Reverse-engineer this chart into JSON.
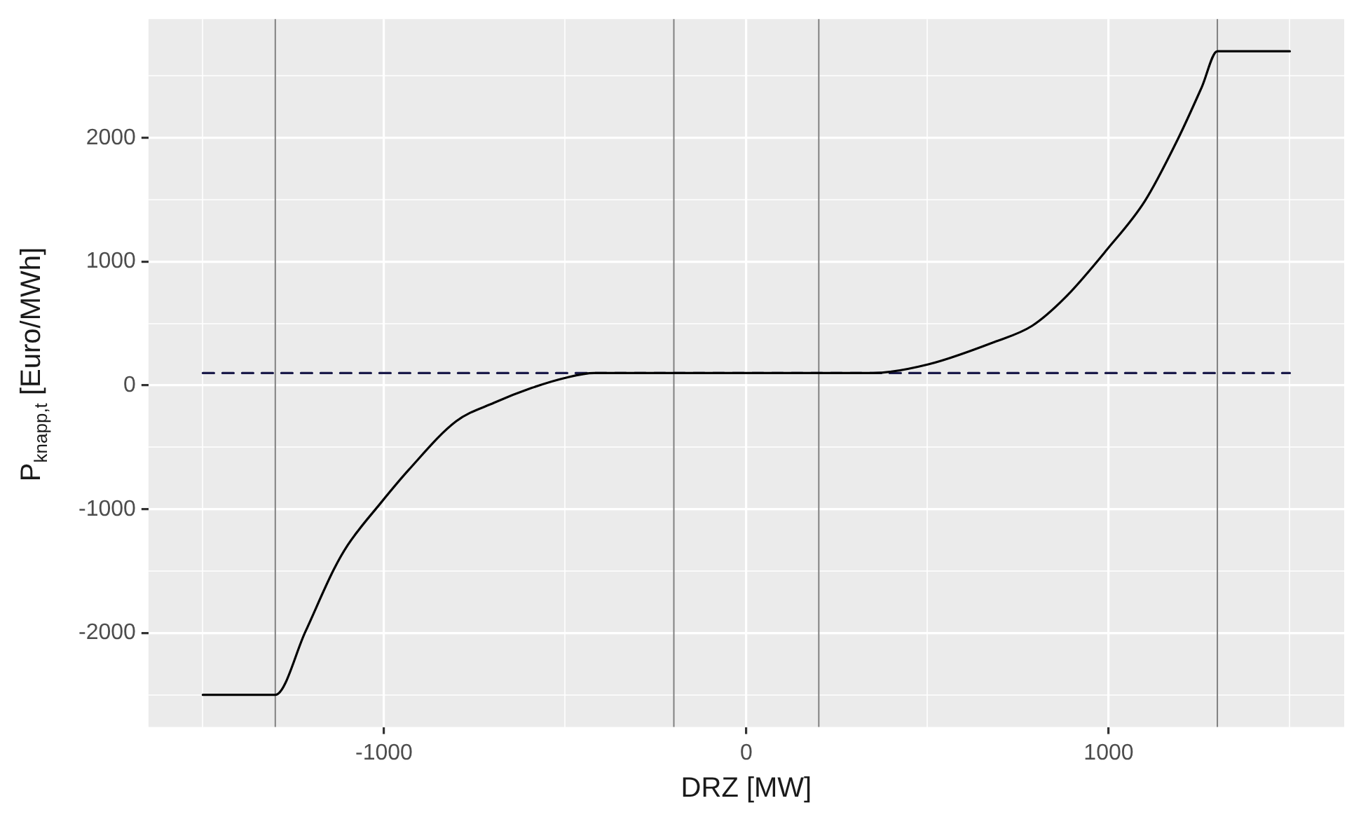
{
  "chart_data": {
    "type": "line",
    "xlabel": "DRZ [MW]",
    "ylabel": "P$_{knapp,t}$ [Euro/MWh]",
    "series": [
      {
        "color": "#000000",
        "line_style": "solid",
        "x": [
          -1500,
          -1300,
          -1217,
          -1139,
          -1100,
          -1009,
          -931,
          -801,
          -696,
          -592,
          -501,
          -420,
          0,
          350,
          502,
          684,
          788,
          880,
          996,
          1100,
          1191,
          1257,
          1300,
          1500
        ],
        "values": [
          -2500,
          -2500,
          -1990,
          -1490,
          -1290,
          -950,
          -680,
          -290,
          -140,
          -20,
          60,
          100,
          100,
          100,
          170,
          350,
          480,
          710,
          1100,
          1490,
          1990,
          2410,
          2700,
          2700
        ]
      },
      {
        "color": "#1a1a4a",
        "line_style": "dashed",
        "x": [
          -1500,
          1500
        ],
        "values": [
          100,
          100
        ]
      }
    ],
    "ref_lines": [
      {
        "axis": "x",
        "value": -1300,
        "color": "#808080"
      },
      {
        "axis": "x",
        "value": -200,
        "color": "#808080"
      },
      {
        "axis": "x",
        "value": 200,
        "color": "#808080"
      },
      {
        "axis": "x",
        "value": 1300,
        "color": "#808080"
      }
    ],
    "xlim": [
      -1650,
      1650
    ],
    "xticks": [
      {
        "value": -1500,
        "label": null
      },
      -1000,
      {
        "value": -500,
        "label": null
      },
      0,
      {
        "value": 500,
        "label": null
      },
      1000,
      {
        "value": 1500,
        "label": null
      }
    ],
    "ylim": [
      -2760,
      2960
    ],
    "yticks": [
      {
        "value": -2500,
        "label": null
      },
      -2000,
      {
        "value": -1500,
        "label": null
      },
      -1000,
      {
        "value": -500,
        "label": null
      },
      0,
      {
        "value": 500,
        "label": null
      },
      1000,
      {
        "value": 1500,
        "label": null
      },
      2000,
      {
        "value": 2500,
        "label": null
      }
    ],
    "grid": true,
    "marker": "none",
    "legend": false
  }
}
